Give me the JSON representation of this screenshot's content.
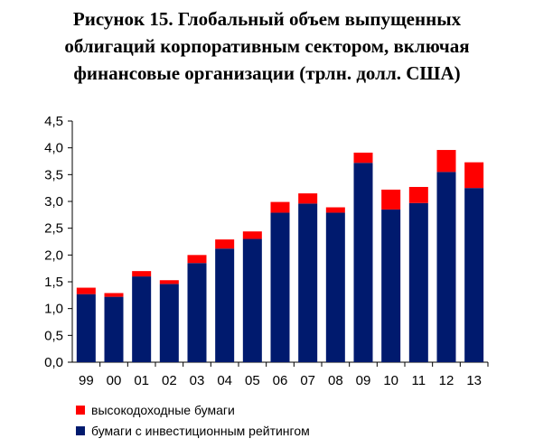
{
  "title_lines": [
    "Рисунок 15. Глобальный объем выпущенных",
    "облигаций корпоративным сектором, включая",
    "финансовые организации (трлн. долл. США)"
  ],
  "chart_data": {
    "type": "bar",
    "stacked": true,
    "title": "Рисунок 15. Глобальный объем выпущенных облигаций корпоративным сектором, включая финансовые организации (трлн. долл. США)",
    "categories": [
      "99",
      "00",
      "01",
      "02",
      "03",
      "04",
      "05",
      "06",
      "07",
      "08",
      "09",
      "10",
      "11",
      "12",
      "13"
    ],
    "series": [
      {
        "name": "бумаги с инвестиционным рейтингом",
        "color": "#001a6e",
        "values": [
          1.27,
          1.22,
          1.6,
          1.46,
          1.85,
          2.12,
          2.3,
          2.79,
          2.96,
          2.79,
          3.72,
          2.85,
          2.97,
          3.55,
          3.25
        ]
      },
      {
        "name": "высокодоходные бумаги",
        "color": "#ff0000",
        "values": [
          0.12,
          0.07,
          0.1,
          0.07,
          0.15,
          0.17,
          0.14,
          0.2,
          0.19,
          0.1,
          0.19,
          0.37,
          0.3,
          0.41,
          0.48
        ]
      }
    ],
    "ylim": [
      0,
      4.5
    ],
    "yticks": [
      "0,0",
      "0,5",
      "1,0",
      "1,5",
      "2,0",
      "2,5",
      "3,0",
      "3,5",
      "4,0",
      "4,5"
    ],
    "xlabel": "",
    "ylabel": "",
    "grid": false,
    "legend_position": "bottom-left"
  }
}
